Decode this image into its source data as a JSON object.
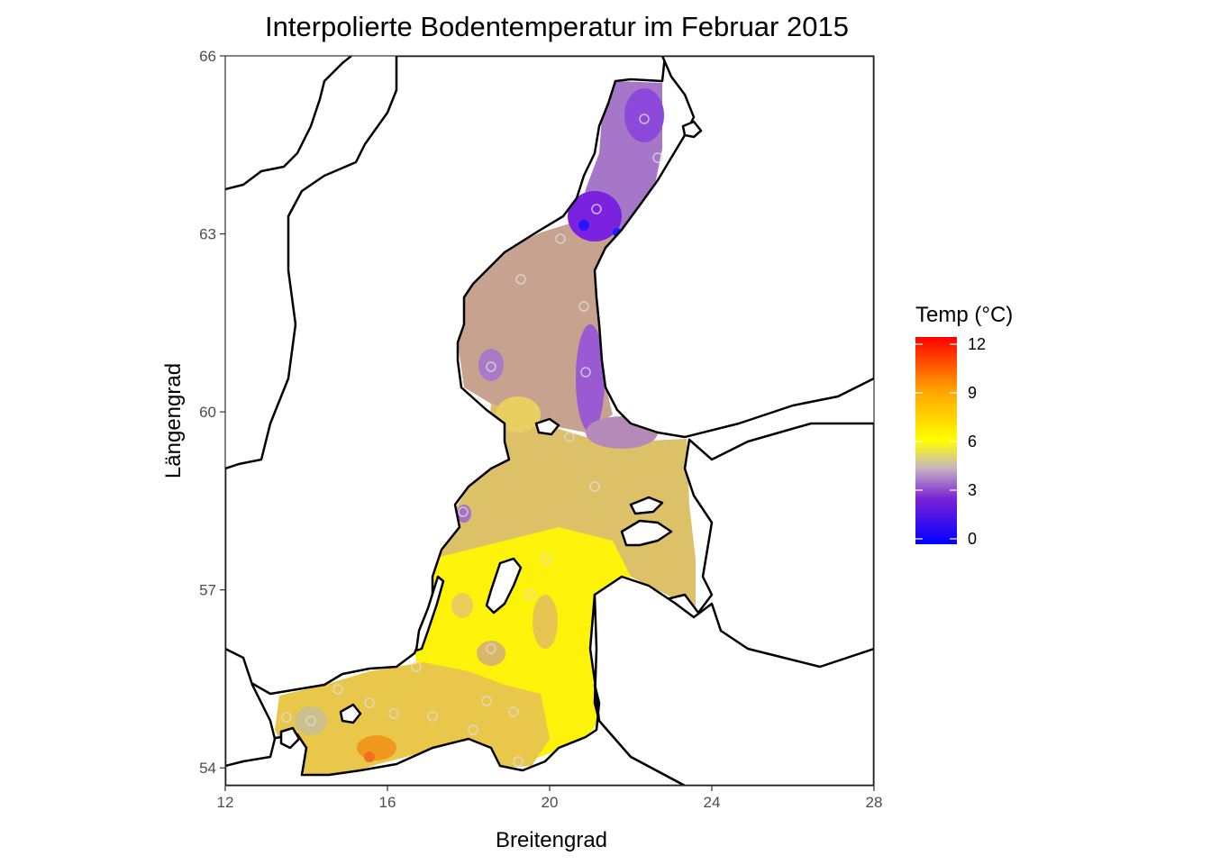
{
  "title": "Interpolierte Bodentemperatur im Februar 2015",
  "xlabel": "Breitengrad",
  "ylabel": "Längengrad",
  "x_axis": {
    "min": 12,
    "max": 28,
    "ticks": [
      "12",
      "16",
      "20",
      "24",
      "28"
    ]
  },
  "y_axis": {
    "min": 53.7,
    "max": 66,
    "ticks": [
      "54",
      "57",
      "60",
      "63",
      "66"
    ]
  },
  "legend": {
    "title": "Temp (°C)",
    "ticks": [
      "0",
      "3",
      "6",
      "9",
      "12"
    ],
    "range": [
      0,
      12
    ],
    "gradient": [
      "#0000ff",
      "#7a22d6",
      "#c8b6c0",
      "#ffff00",
      "#ffa000",
      "#ff0000"
    ]
  },
  "colors": {
    "land_outline": "#000000",
    "panel_border": "#333333",
    "background": "#ffffff"
  },
  "chart_data": {
    "type": "heatmap",
    "title": "Interpolierte Bodentemperatur im Februar 2015",
    "xlabel": "Breitengrad",
    "ylabel": "Längengrad",
    "xlim": [
      12,
      28
    ],
    "ylim": [
      53.7,
      66
    ],
    "grid": false,
    "legend": "right",
    "colorbar": {
      "name": "Temp (°C)",
      "min": 0,
      "max": 12
    },
    "regions": [
      {
        "lon": [
          20.5,
          23.0
        ],
        "lat": [
          63.5,
          65.5
        ],
        "temp": 2.0
      },
      {
        "lon": [
          20.3,
          21.8
        ],
        "lat": [
          62.8,
          63.7
        ],
        "temp": 1.0
      },
      {
        "lon": [
          17.3,
          21.0
        ],
        "lat": [
          60.5,
          62.8
        ],
        "temp": 3.5
      },
      {
        "lon": [
          20.0,
          21.5
        ],
        "lat": [
          60.0,
          62.0
        ],
        "temp": 2.0
      },
      {
        "lon": [
          19.5,
          23.5
        ],
        "lat": [
          59.5,
          60.4
        ],
        "temp": 3.0
      },
      {
        "lon": [
          17.5,
          23.5
        ],
        "lat": [
          57.5,
          59.5
        ],
        "temp": 5.0
      },
      {
        "lon": [
          14.0,
          20.5
        ],
        "lat": [
          55.5,
          57.5
        ],
        "temp": 6.5
      },
      {
        "lon": [
          13.2,
          19.5
        ],
        "lat": [
          54.0,
          55.5
        ],
        "temp": 7.0
      },
      {
        "lon": [
          15.2,
          16.2
        ],
        "lat": [
          54.2,
          54.6
        ],
        "temp": 10.5
      }
    ]
  }
}
